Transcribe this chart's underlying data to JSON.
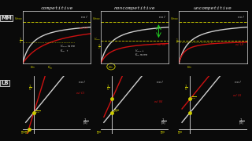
{
  "background_color": "#0a0a0a",
  "text_color": "#e0e0e0",
  "title_color": "#d0d0d0",
  "panel_titles": [
    "competitive",
    "noncompetitive",
    "uncompetitive"
  ],
  "row_labels": [
    "MM",
    "LB"
  ],
  "curve_color_no_I": "#d0d0d0",
  "curve_color_with_I": "#cc1111",
  "dashed_color": "#cccc00",
  "annotation_color": "#cccc00",
  "green_color": "#22cc22",
  "spine_color": "#888888"
}
